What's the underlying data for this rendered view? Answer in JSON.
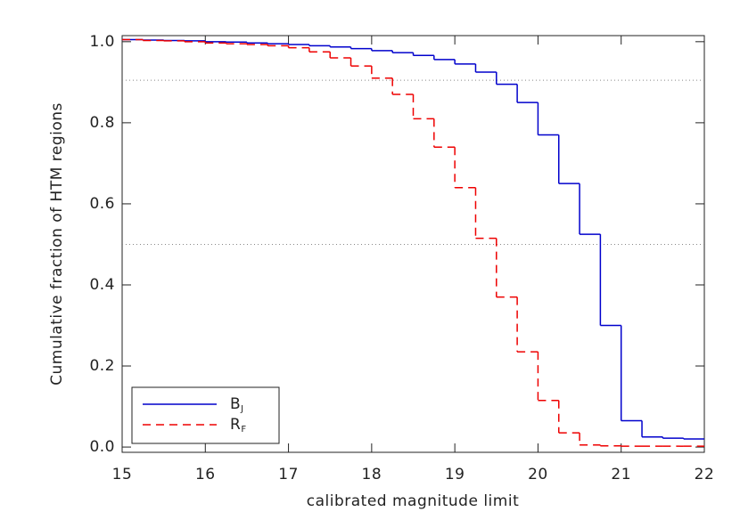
{
  "chart_data": {
    "type": "step",
    "x_label": "calibrated magnitude limit",
    "y_label": "Cumulative fraction of HTM regions",
    "x": [
      15,
      15.25,
      15.5,
      15.75,
      16,
      16.25,
      16.5,
      16.75,
      17,
      17.25,
      17.5,
      17.75,
      18,
      18.25,
      18.5,
      18.75,
      19,
      19.25,
      19.5,
      19.75,
      20,
      20.25,
      20.5,
      20.75,
      21,
      21.25,
      21.5,
      21.75
    ],
    "series": [
      {
        "name": "BJ",
        "color": "#0000cc",
        "dash": "solid",
        "values": [
          1.005,
          1.004,
          1.003,
          1.002,
          1.0,
          0.999,
          0.997,
          0.995,
          0.993,
          0.99,
          0.987,
          0.983,
          0.978,
          0.973,
          0.966,
          0.956,
          0.945,
          0.925,
          0.895,
          0.85,
          0.77,
          0.65,
          0.525,
          0.3,
          0.065,
          0.025,
          0.022,
          0.02
        ]
      },
      {
        "name": "RF",
        "color": "#ee0000",
        "dash": "dashed",
        "values": [
          1.005,
          1.003,
          1.002,
          1.0,
          0.997,
          0.995,
          0.993,
          0.99,
          0.985,
          0.975,
          0.96,
          0.94,
          0.91,
          0.87,
          0.81,
          0.74,
          0.64,
          0.515,
          0.37,
          0.235,
          0.115,
          0.035,
          0.005,
          0.003,
          0.002,
          0.002,
          0.002,
          0.002
        ]
      }
    ],
    "hlines": [
      0.905,
      0.5
    ],
    "xlim": [
      15,
      22
    ],
    "ylim": [
      -0.013,
      1.015
    ],
    "xticks": [
      15,
      16,
      17,
      18,
      19,
      20,
      21,
      22
    ],
    "yticks": [
      {
        "value": 0,
        "label": "0.0"
      },
      0.2,
      0.4,
      0.6,
      0.8,
      {
        "value": 1,
        "label": "1.0"
      }
    ],
    "legend": "lower left"
  }
}
